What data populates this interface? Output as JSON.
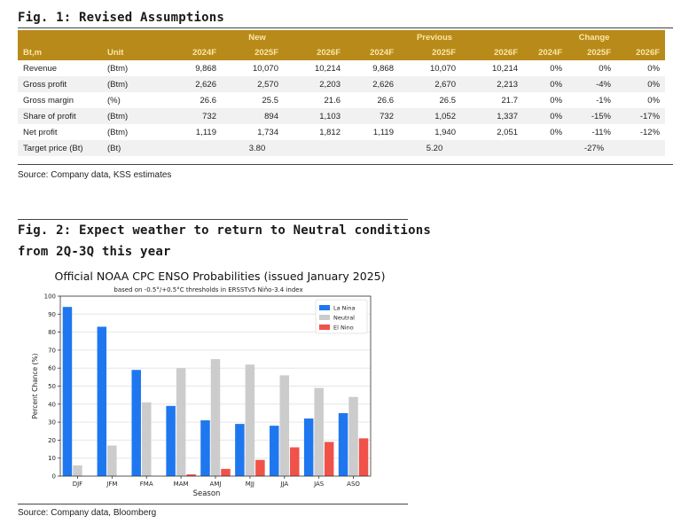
{
  "fig1": {
    "title": "Fig. 1: Revised Assumptions",
    "group_headers": [
      "New",
      "Previous",
      "Change"
    ],
    "columns": [
      "Bt,m",
      "Unit",
      "2024F",
      "2025F",
      "2026F",
      "2024F",
      "2025F",
      "2026F",
      "2024F",
      "2025F",
      "2026F"
    ],
    "rows": [
      [
        "Revenue",
        "(Btm)",
        "9,868",
        "10,070",
        "10,214",
        "9,868",
        "10,070",
        "10,214",
        "0%",
        "0%",
        "0%"
      ],
      [
        "Gross profit",
        "(Btm)",
        "2,626",
        "2,570",
        "2,203",
        "2,626",
        "2,670",
        "2,213",
        "0%",
        "-4%",
        "0%"
      ],
      [
        "Gross margin",
        "(%)",
        "26.6",
        "25.5",
        "21.6",
        "26.6",
        "26.5",
        "21.7",
        "0%",
        "-1%",
        "0%"
      ],
      [
        "Share of profit",
        "(Btm)",
        "732",
        "894",
        "1,103",
        "732",
        "1,052",
        "1,337",
        "0%",
        "-15%",
        "-17%"
      ],
      [
        "Net profit",
        "(Btm)",
        "1,119",
        "1,734",
        "1,812",
        "1,119",
        "1,940",
        "2,051",
        "0%",
        "-11%",
        "-12%"
      ]
    ],
    "target_row": {
      "label": "Target price (Bt)",
      "unit": "(Bt)",
      "new": "3.80",
      "previous": "5.20",
      "change": "-27%"
    },
    "source": "Source: Company data, KSS estimates"
  },
  "fig2": {
    "title_line1": "Fig. 2: Expect weather to return to Neutral conditions",
    "title_line2": "from 2Q-3Q this year",
    "source": "Source: Company data, Bloomberg"
  },
  "chart_data": {
    "type": "bar",
    "title": "Official NOAA CPC ENSO Probabilities (issued January 2025)",
    "subtitle": "based on -0.5°/+0.5°C thresholds in ERSSTv5 Niño-3.4 index",
    "xlabel": "Season",
    "ylabel": "Percent Chance (%)",
    "ylim": [
      0,
      100
    ],
    "yticks": [
      0,
      10,
      20,
      30,
      40,
      50,
      60,
      70,
      80,
      90,
      100
    ],
    "grid": true,
    "legend": "top-right",
    "categories": [
      "DJF",
      "JFM",
      "FMA",
      "MAM",
      "AMJ",
      "MJJ",
      "JJA",
      "JAS",
      "ASO"
    ],
    "series": [
      {
        "name": "La Nina",
        "color": "#1f77f0",
        "values": [
          94,
          83,
          59,
          39,
          31,
          29,
          28,
          32,
          35
        ]
      },
      {
        "name": "Neutral",
        "color": "#cccccc",
        "values": [
          6,
          17,
          41,
          60,
          65,
          62,
          56,
          49,
          44
        ]
      },
      {
        "name": "El Nino",
        "color": "#f0524a",
        "values": [
          0,
          0,
          0,
          1,
          4,
          9,
          16,
          19,
          21
        ]
      }
    ]
  }
}
